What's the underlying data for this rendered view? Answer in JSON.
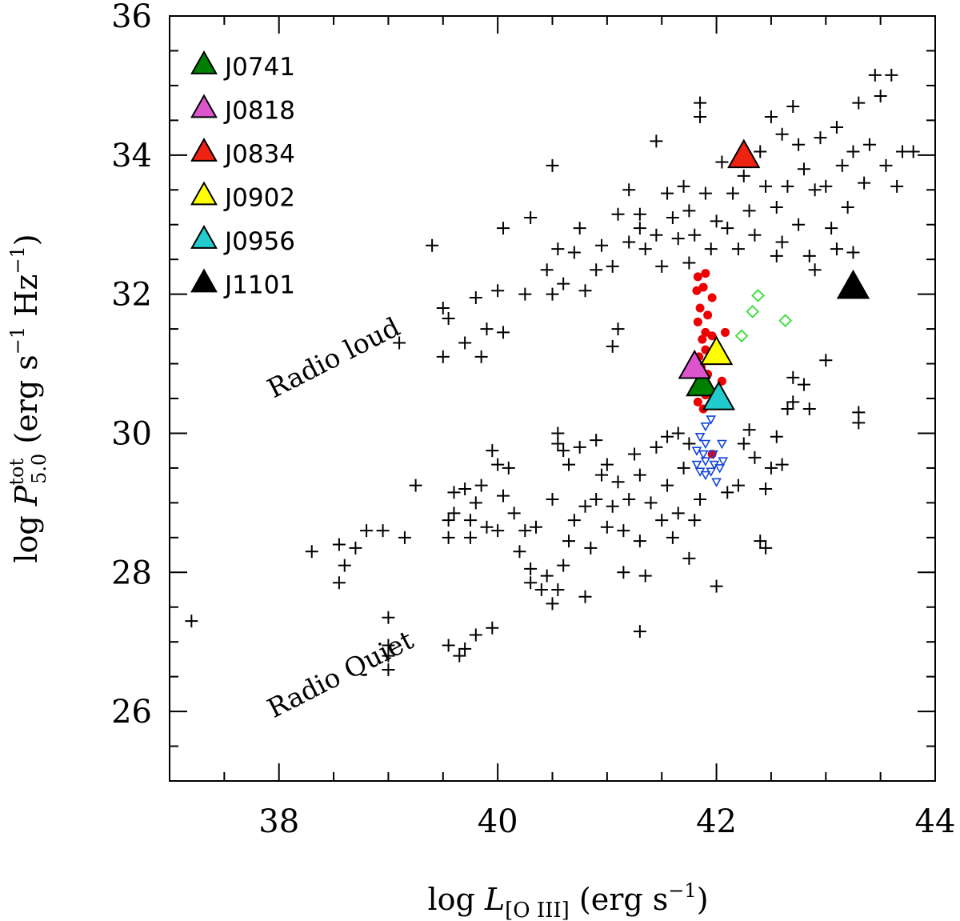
{
  "chart_data": {
    "type": "scatter",
    "xlabel": {
      "prefix": "log ",
      "var": "L",
      "sub": "[O III]",
      "unit": " (erg s",
      "exp": "−1",
      "close": ")"
    },
    "ylabel": {
      "prefix": "log ",
      "var": "P",
      "sup": "tot",
      "sub": "5.0",
      "unit": " (erg s",
      "exp1": "−1",
      "mid": " Hz",
      "exp2": "−1",
      "close": ")"
    },
    "xlim": [
      37,
      44
    ],
    "ylim": [
      25,
      36
    ],
    "x_ticks": [
      38,
      40,
      42,
      44
    ],
    "x_tick_labels": [
      "38",
      "40",
      "42",
      "44"
    ],
    "y_ticks": [
      26,
      28,
      30,
      32,
      34,
      36
    ],
    "y_tick_labels": [
      "26",
      "28",
      "30",
      "32",
      "34",
      "36"
    ],
    "annotations": [
      {
        "text": "Radio loud",
        "x": 37.95,
        "y": 30.5,
        "rotation": -27
      },
      {
        "text": "Radio Quiet",
        "x": 37.95,
        "y": 25.9,
        "rotation": -27
      }
    ],
    "legend": [
      {
        "label": "J0741",
        "color": "#008000"
      },
      {
        "label": "J0818",
        "color": "#dd55cc"
      },
      {
        "label": "J0834",
        "color": "#ee2211"
      },
      {
        "label": "J0902",
        "color": "#ffff00"
      },
      {
        "label": "J0956",
        "color": "#22cccc"
      },
      {
        "label": "J1101",
        "color": "#000000"
      }
    ],
    "series": [
      {
        "name": "J0741",
        "marker": "triangle",
        "color": "#008000",
        "points": [
          [
            41.87,
            30.7
          ]
        ]
      },
      {
        "name": "J0818",
        "marker": "triangle",
        "color": "#dd55cc",
        "points": [
          [
            41.8,
            30.95
          ]
        ]
      },
      {
        "name": "J0834",
        "marker": "triangle",
        "color": "#ee2211",
        "points": [
          [
            42.25,
            33.98
          ]
        ]
      },
      {
        "name": "J0902",
        "marker": "triangle",
        "color": "#ffff00",
        "points": [
          [
            42.0,
            31.15
          ]
        ]
      },
      {
        "name": "J0956",
        "marker": "triangle",
        "color": "#22cccc",
        "points": [
          [
            42.02,
            30.5
          ]
        ]
      },
      {
        "name": "J1101",
        "marker": "triangle",
        "color": "#000000",
        "points": [
          [
            43.25,
            32.1
          ]
        ]
      },
      {
        "name": "red-dots",
        "marker": "circle",
        "color": "#ee0000",
        "points": [
          [
            41.83,
            32.25
          ],
          [
            41.9,
            32.3
          ],
          [
            41.82,
            32.05
          ],
          [
            41.88,
            32.1
          ],
          [
            41.96,
            31.95
          ],
          [
            41.85,
            31.8
          ],
          [
            41.92,
            31.7
          ],
          [
            41.83,
            31.6
          ],
          [
            41.9,
            31.45
          ],
          [
            41.96,
            31.4
          ],
          [
            41.87,
            31.35
          ],
          [
            41.9,
            31.2
          ],
          [
            41.84,
            31.1
          ],
          [
            41.93,
            31.05
          ],
          [
            42.08,
            31.45
          ],
          [
            41.86,
            30.95
          ],
          [
            41.92,
            30.85
          ],
          [
            42.05,
            30.75
          ],
          [
            41.85,
            30.65
          ],
          [
            41.9,
            30.55
          ],
          [
            41.83,
            30.45
          ],
          [
            41.88,
            30.35
          ],
          [
            41.96,
            29.7
          ]
        ]
      },
      {
        "name": "blue-triangles",
        "marker": "triangle-down-open",
        "color": "#1144dd",
        "points": [
          [
            41.9,
            30.1
          ],
          [
            41.95,
            30.2
          ],
          [
            41.85,
            29.95
          ],
          [
            41.9,
            29.85
          ],
          [
            41.82,
            29.75
          ],
          [
            41.88,
            29.7
          ],
          [
            41.97,
            29.7
          ],
          [
            42.05,
            29.85
          ],
          [
            41.82,
            29.55
          ],
          [
            41.9,
            29.6
          ],
          [
            41.98,
            29.55
          ],
          [
            42.06,
            29.6
          ],
          [
            41.85,
            29.45
          ],
          [
            41.95,
            29.45
          ],
          [
            42.03,
            29.5
          ],
          [
            42.0,
            29.3
          ],
          [
            41.9,
            29.4
          ]
        ]
      },
      {
        "name": "green-diamonds",
        "marker": "diamond-open",
        "color": "#33dd33",
        "points": [
          [
            42.38,
            31.98
          ],
          [
            42.33,
            31.75
          ],
          [
            42.63,
            31.62
          ],
          [
            42.23,
            31.4
          ]
        ]
      },
      {
        "name": "crosses",
        "marker": "plus",
        "color": "#000000",
        "points": [
          [
            37.2,
            27.3
          ],
          [
            38.3,
            28.3
          ],
          [
            38.55,
            28.4
          ],
          [
            38.6,
            28.1
          ],
          [
            38.55,
            27.85
          ],
          [
            38.7,
            28.35
          ],
          [
            38.8,
            28.6
          ],
          [
            38.95,
            28.6
          ],
          [
            39.0,
            27.35
          ],
          [
            39.0,
            26.95
          ],
          [
            39.0,
            26.6
          ],
          [
            39.0,
            26.8
          ],
          [
            39.15,
            28.5
          ],
          [
            39.25,
            29.25
          ],
          [
            39.55,
            26.95
          ],
          [
            39.65,
            26.8
          ],
          [
            39.7,
            26.9
          ],
          [
            39.8,
            27.1
          ],
          [
            39.95,
            27.2
          ],
          [
            39.55,
            28.5
          ],
          [
            39.55,
            28.75
          ],
          [
            39.6,
            28.85
          ],
          [
            39.6,
            29.15
          ],
          [
            39.7,
            29.2
          ],
          [
            39.75,
            28.5
          ],
          [
            39.75,
            28.75
          ],
          [
            39.8,
            29.0
          ],
          [
            39.85,
            29.25
          ],
          [
            39.9,
            28.65
          ],
          [
            40.0,
            28.6
          ],
          [
            40.05,
            29.1
          ],
          [
            40.0,
            29.55
          ],
          [
            39.95,
            29.75
          ],
          [
            40.1,
            29.5
          ],
          [
            40.15,
            28.85
          ],
          [
            40.2,
            28.3
          ],
          [
            40.25,
            28.6
          ],
          [
            40.3,
            28.05
          ],
          [
            40.3,
            27.85
          ],
          [
            40.35,
            28.65
          ],
          [
            40.4,
            27.75
          ],
          [
            40.45,
            27.95
          ],
          [
            40.5,
            27.55
          ],
          [
            40.55,
            27.75
          ],
          [
            40.6,
            28.1
          ],
          [
            40.65,
            28.45
          ],
          [
            40.7,
            28.75
          ],
          [
            40.5,
            29.05
          ],
          [
            40.55,
            29.85
          ],
          [
            40.55,
            30.0
          ],
          [
            40.6,
            29.75
          ],
          [
            40.65,
            29.55
          ],
          [
            40.75,
            29.8
          ],
          [
            40.8,
            28.95
          ],
          [
            40.8,
            27.65
          ],
          [
            40.85,
            28.35
          ],
          [
            40.9,
            29.05
          ],
          [
            40.95,
            29.4
          ],
          [
            40.9,
            29.9
          ],
          [
            41.0,
            28.65
          ],
          [
            41.0,
            29.55
          ],
          [
            41.1,
            29.3
          ],
          [
            41.05,
            28.95
          ],
          [
            41.15,
            28.6
          ],
          [
            41.15,
            28.0
          ],
          [
            41.2,
            29.05
          ],
          [
            41.25,
            29.7
          ],
          [
            41.3,
            29.4
          ],
          [
            41.3,
            28.45
          ],
          [
            41.35,
            27.95
          ],
          [
            41.4,
            29.0
          ],
          [
            41.45,
            29.8
          ],
          [
            41.5,
            28.75
          ],
          [
            41.55,
            29.25
          ],
          [
            41.6,
            28.5
          ],
          [
            41.65,
            28.85
          ],
          [
            41.7,
            29.5
          ],
          [
            41.75,
            28.2
          ],
          [
            41.3,
            27.15
          ],
          [
            41.8,
            28.75
          ],
          [
            41.85,
            29.05
          ],
          [
            41.55,
            29.95
          ],
          [
            41.65,
            30.0
          ],
          [
            41.75,
            29.85
          ],
          [
            42.0,
            27.8
          ],
          [
            42.1,
            29.15
          ],
          [
            42.2,
            29.25
          ],
          [
            42.25,
            29.85
          ],
          [
            42.3,
            30.05
          ],
          [
            42.35,
            29.65
          ],
          [
            42.4,
            28.45
          ],
          [
            42.45,
            29.2
          ],
          [
            42.5,
            29.5
          ],
          [
            42.55,
            29.95
          ],
          [
            42.6,
            29.55
          ],
          [
            42.65,
            30.35
          ],
          [
            42.7,
            30.45
          ],
          [
            42.7,
            30.8
          ],
          [
            42.8,
            30.7
          ],
          [
            42.85,
            30.35
          ],
          [
            43.0,
            31.05
          ],
          [
            43.3,
            30.3
          ],
          [
            43.3,
            30.15
          ],
          [
            42.45,
            28.35
          ],
          [
            39.1,
            31.3
          ],
          [
            39.4,
            32.7
          ],
          [
            39.5,
            31.8
          ],
          [
            39.55,
            31.65
          ],
          [
            39.5,
            31.1
          ],
          [
            39.7,
            31.3
          ],
          [
            39.8,
            31.95
          ],
          [
            39.9,
            31.5
          ],
          [
            39.85,
            31.1
          ],
          [
            40.0,
            32.05
          ],
          [
            40.05,
            31.45
          ],
          [
            40.05,
            32.95
          ],
          [
            40.25,
            32.0
          ],
          [
            40.3,
            33.1
          ],
          [
            40.45,
            32.35
          ],
          [
            40.5,
            32.0
          ],
          [
            40.55,
            32.65
          ],
          [
            40.5,
            33.85
          ],
          [
            40.6,
            32.15
          ],
          [
            40.7,
            32.6
          ],
          [
            40.75,
            32.95
          ],
          [
            40.8,
            32.05
          ],
          [
            40.9,
            32.35
          ],
          [
            40.95,
            32.7
          ],
          [
            41.05,
            32.4
          ],
          [
            41.05,
            31.25
          ],
          [
            41.1,
            31.5
          ],
          [
            41.1,
            33.15
          ],
          [
            41.2,
            32.75
          ],
          [
            41.2,
            33.5
          ],
          [
            41.3,
            32.95
          ],
          [
            41.3,
            33.15
          ],
          [
            41.35,
            32.65
          ],
          [
            41.45,
            32.85
          ],
          [
            41.45,
            34.2
          ],
          [
            41.5,
            32.4
          ],
          [
            41.55,
            33.45
          ],
          [
            41.6,
            33.1
          ],
          [
            41.65,
            32.8
          ],
          [
            41.7,
            33.55
          ],
          [
            41.75,
            32.45
          ],
          [
            41.75,
            33.2
          ],
          [
            41.8,
            32.85
          ],
          [
            41.85,
            34.75
          ],
          [
            41.85,
            34.55
          ],
          [
            41.9,
            33.45
          ],
          [
            41.95,
            32.65
          ],
          [
            42.0,
            33.05
          ],
          [
            42.05,
            33.9
          ],
          [
            42.1,
            32.95
          ],
          [
            42.15,
            33.45
          ],
          [
            42.2,
            32.65
          ],
          [
            42.25,
            33.7
          ],
          [
            42.3,
            33.2
          ],
          [
            42.35,
            32.85
          ],
          [
            42.4,
            34.05
          ],
          [
            42.45,
            33.55
          ],
          [
            42.5,
            34.55
          ],
          [
            42.55,
            33.25
          ],
          [
            42.6,
            34.3
          ],
          [
            42.6,
            32.75
          ],
          [
            42.65,
            33.55
          ],
          [
            42.7,
            34.7
          ],
          [
            42.75,
            33.0
          ],
          [
            42.75,
            34.15
          ],
          [
            42.8,
            33.8
          ],
          [
            42.85,
            32.55
          ],
          [
            42.9,
            33.5
          ],
          [
            42.95,
            34.25
          ],
          [
            43.0,
            33.55
          ],
          [
            43.05,
            32.95
          ],
          [
            43.1,
            34.4
          ],
          [
            43.15,
            33.85
          ],
          [
            43.2,
            33.25
          ],
          [
            43.25,
            34.05
          ],
          [
            43.3,
            34.75
          ],
          [
            43.35,
            33.6
          ],
          [
            43.4,
            34.15
          ],
          [
            43.45,
            35.15
          ],
          [
            43.5,
            34.85
          ],
          [
            43.55,
            33.85
          ],
          [
            43.6,
            35.15
          ],
          [
            43.65,
            33.55
          ],
          [
            43.7,
            34.05
          ],
          [
            43.8,
            34.05
          ],
          [
            43.25,
            32.6
          ],
          [
            43.1,
            32.65
          ],
          [
            42.9,
            32.35
          ],
          [
            42.55,
            32.55
          ]
        ]
      }
    ]
  }
}
